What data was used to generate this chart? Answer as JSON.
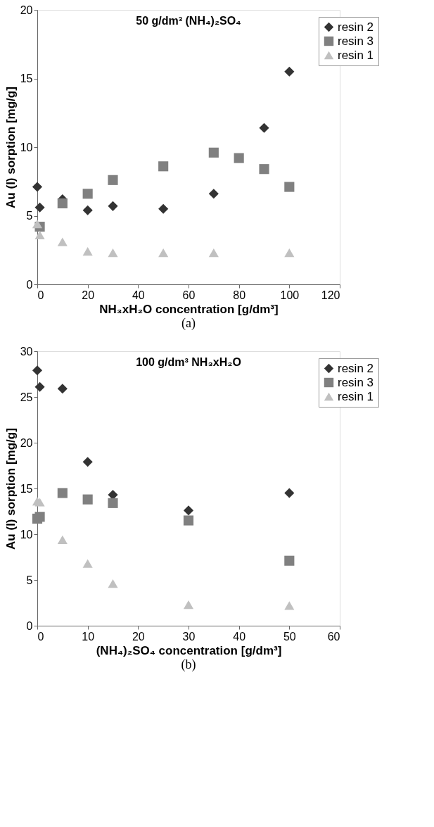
{
  "chart_data": [
    {
      "type": "scatter",
      "title": "50 g/dm³ (NH₄)₂SO₄",
      "xlabel": "NH₃xH₂O concentration [g/dm³]",
      "ylabel": "Au (I) sorption [mg/g]",
      "xlim": [
        0,
        120
      ],
      "xticks": [
        0,
        20,
        40,
        60,
        80,
        100,
        120
      ],
      "ylim": [
        0,
        20
      ],
      "yticks": [
        0,
        5,
        10,
        15,
        20
      ],
      "legend": "top right",
      "grid": false,
      "annotations": [
        "(a)"
      ],
      "series": [
        {
          "name": "resin 2",
          "color": "#333333",
          "marker": "diamond",
          "x": [
            0,
            1,
            10,
            20,
            30,
            50,
            70,
            90,
            100
          ],
          "values": [
            7.1,
            5.6,
            6.2,
            5.4,
            5.7,
            5.5,
            6.6,
            11.4,
            15.5
          ]
        },
        {
          "name": "resin 3",
          "color": "#808080",
          "marker": "square",
          "x": [
            1,
            10,
            20,
            30,
            50,
            70,
            80,
            90,
            100
          ],
          "values": [
            4.2,
            5.9,
            6.6,
            7.6,
            8.6,
            9.6,
            9.2,
            8.4,
            7.1
          ]
        },
        {
          "name": "resin 1",
          "color": "#c0c0c0",
          "marker": "triangle",
          "x": [
            0,
            1,
            10,
            20,
            30,
            50,
            70,
            100
          ],
          "values": [
            4.4,
            3.6,
            3.1,
            2.4,
            2.3,
            2.3,
            2.3,
            2.3
          ]
        }
      ]
    },
    {
      "type": "scatter",
      "title": "100 g/dm³ NH₃xH₂O",
      "xlabel": "(NH₄)₂SO₄ concentration [g/dm³]",
      "ylabel": "Au (I) sorption [mg/g]",
      "xlim": [
        0,
        60
      ],
      "xticks": [
        0,
        10,
        20,
        30,
        40,
        50,
        60
      ],
      "ylim": [
        0,
        30
      ],
      "yticks": [
        0,
        5,
        10,
        15,
        20,
        25,
        30
      ],
      "legend": "top right",
      "grid": false,
      "annotations": [
        "(b)"
      ],
      "series": [
        {
          "name": "resin 2",
          "color": "#333333",
          "marker": "diamond",
          "x": [
            0,
            0.5,
            5,
            10,
            15,
            30,
            50
          ],
          "values": [
            27.9,
            26.1,
            25.9,
            17.9,
            14.3,
            12.6,
            14.5
          ]
        },
        {
          "name": "resin 3",
          "color": "#808080",
          "marker": "square",
          "x": [
            0,
            0.5,
            5,
            10,
            15,
            30,
            50
          ],
          "values": [
            11.7,
            11.9,
            14.5,
            13.8,
            13.4,
            11.5,
            7.1
          ]
        },
        {
          "name": "resin 1",
          "color": "#c0c0c0",
          "marker": "triangle",
          "x": [
            0,
            0.5,
            5,
            10,
            15,
            30,
            50
          ],
          "values": [
            13.6,
            13.5,
            9.4,
            6.8,
            4.6,
            2.3,
            2.2
          ]
        }
      ]
    }
  ]
}
